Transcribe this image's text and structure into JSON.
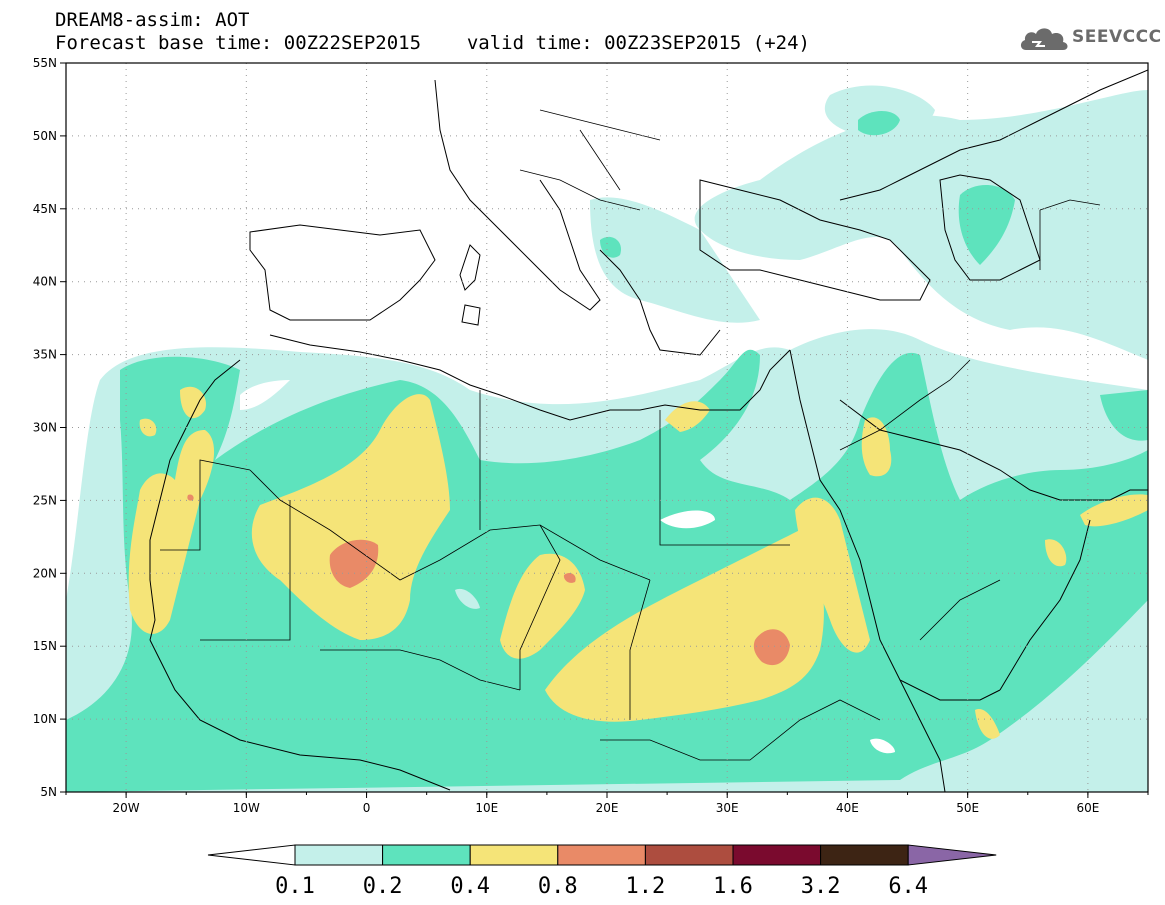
{
  "header": {
    "line1": "DREAM8-assim: AOT",
    "base_time_label": "Forecast base time: 00Z22SEP2015",
    "valid_time_label": "valid time: 00Z23SEP2015 (+24)"
  },
  "logo": {
    "text": "SEEVCCC",
    "icon": "cloud-icon"
  },
  "map": {
    "lon_range": [
      -25,
      65
    ],
    "lat_range": [
      5,
      55
    ],
    "lat_labels": [
      "55N",
      "50N",
      "45N",
      "40N",
      "35N",
      "30N",
      "25N",
      "20N",
      "15N",
      "10N",
      "5N"
    ],
    "lon_labels": [
      "20W",
      "10W",
      "0",
      "10E",
      "20E",
      "30E",
      "40E",
      "50E",
      "60E"
    ]
  },
  "colorbar": {
    "levels": [
      "0.1",
      "0.2",
      "0.4",
      "0.8",
      "1.2",
      "1.6",
      "3.2",
      "6.4"
    ],
    "colors": [
      "#c4f0ea",
      "#5ee3bd",
      "#f5e478",
      "#e98a67",
      "#ad4d3f",
      "#7a0a2e",
      "#3d2414",
      "#8a66a6"
    ],
    "under_color": "#ffffff"
  },
  "shading_colors": {
    "low": "#c4f0ea",
    "mid": "#5ee3bd",
    "high": "#f5e478",
    "vhigh": "#e98a67"
  }
}
